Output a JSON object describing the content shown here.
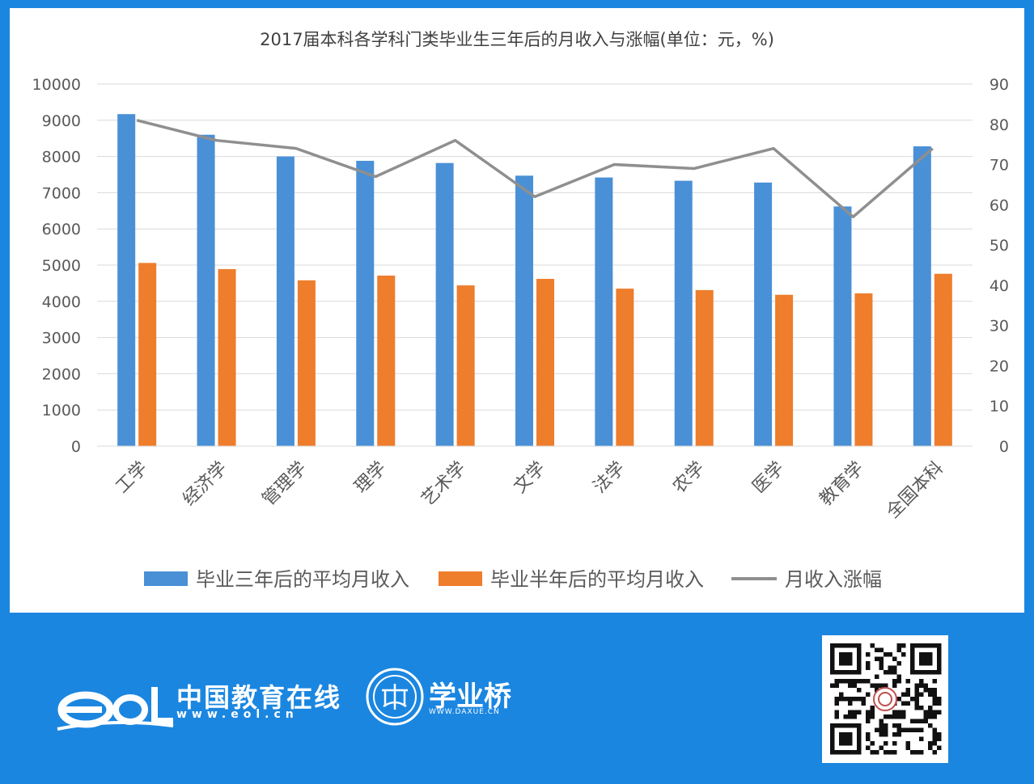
{
  "chart_data": {
    "type": "bar",
    "title": "2017届本科各学科门类毕业生三年后的月收入与涨幅(单位：元，%)",
    "categories": [
      "工学",
      "经济学",
      "管理学",
      "理学",
      "艺术学",
      "文学",
      "法学",
      "农学",
      "医学",
      "教育学",
      "全国本科"
    ],
    "y_left_ticks": [
      "0",
      "1000",
      "2000",
      "3000",
      "4000",
      "5000",
      "6000",
      "7000",
      "8000",
      "9000",
      "10000"
    ],
    "y_right_ticks": [
      "0",
      "10",
      "20",
      "30",
      "40",
      "50",
      "60",
      "70",
      "80",
      "90"
    ],
    "ylim_left": [
      0,
      10000
    ],
    "ylim_right": [
      0,
      90
    ],
    "grid": true,
    "legend_position": "bottom",
    "series": [
      {
        "name": "毕业三年后的平均月收入",
        "kind": "bar",
        "axis": "left",
        "color": "#4a90d6",
        "values": [
          9170,
          8600,
          8000,
          7880,
          7820,
          7470,
          7420,
          7330,
          7280,
          6620,
          8280
        ]
      },
      {
        "name": "毕业半年后的平均月收入",
        "kind": "bar",
        "axis": "left",
        "color": "#ee7d2c",
        "values": [
          5060,
          4890,
          4580,
          4710,
          4440,
          4620,
          4350,
          4310,
          4180,
          4220,
          4760
        ]
      },
      {
        "name": "月收入涨幅",
        "kind": "line",
        "axis": "right",
        "color": "#8f8f8f",
        "values": [
          81,
          76,
          74,
          67,
          76,
          62,
          70,
          69,
          74,
          57,
          74
        ]
      }
    ]
  },
  "footer": {
    "eol_name": "中国教育在线",
    "eol_url": "www.eol.cn",
    "xyq_name": "学业桥",
    "xyq_url": "WWW.DAXUE.CN"
  }
}
